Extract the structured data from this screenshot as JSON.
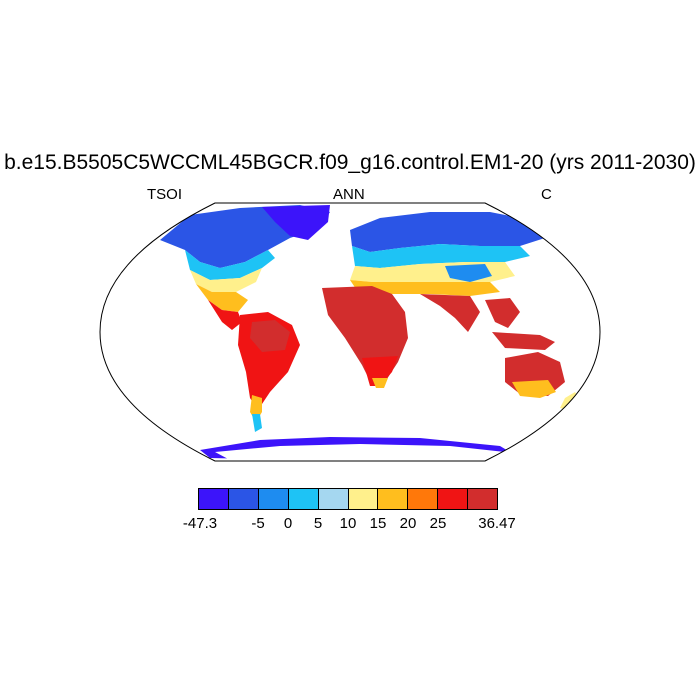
{
  "header": {
    "title": "b.e15.B5505C5WCCML45BGCR.f09_g16.control.EM1-20 (yrs 2011-2030)",
    "left_label": "TSOI",
    "center_label": "ANN",
    "right_label": "C"
  },
  "colorbar": {
    "colors": [
      "#3c14fa",
      "#2b55e6",
      "#1e8cf0",
      "#1ec3f5",
      "#a5d7f0",
      "#fff08c",
      "#ffbe1e",
      "#ff780a",
      "#f01414",
      "#d22d2d"
    ],
    "labels": {
      "min": "-47.3",
      "t1": "-5",
      "t2": "0",
      "t3": "5",
      "t4": "10",
      "t5": "15",
      "t6": "20",
      "t7": "25",
      "max": "36.47"
    }
  }
}
